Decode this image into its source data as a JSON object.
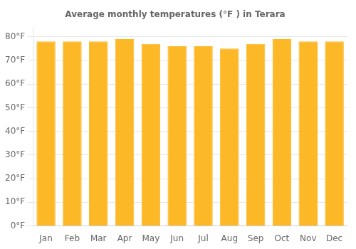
{
  "chart_data": {
    "type": "bar",
    "title": "Average monthly temperatures (°F ) in Terara",
    "categories": [
      "Jan",
      "Feb",
      "Mar",
      "Apr",
      "May",
      "Jun",
      "Jul",
      "Aug",
      "Sep",
      "Oct",
      "Nov",
      "Dec"
    ],
    "values": [
      78,
      78,
      78,
      79,
      77,
      76,
      76,
      75,
      77,
      79,
      78,
      78
    ],
    "color": "#FDB827",
    "ylim": [
      0,
      84
    ],
    "yticks": [
      {
        "value": 0,
        "label": "0°F"
      },
      {
        "value": 10,
        "label": "10°F"
      },
      {
        "value": 20,
        "label": "20°F"
      },
      {
        "value": 30,
        "label": "30°F"
      },
      {
        "value": 40,
        "label": "40°F"
      },
      {
        "value": 50,
        "label": "50°F"
      },
      {
        "value": 60,
        "label": "60°F"
      },
      {
        "value": 70,
        "label": "70°F"
      },
      {
        "value": 80,
        "label": "80°F"
      }
    ],
    "grid": true
  }
}
